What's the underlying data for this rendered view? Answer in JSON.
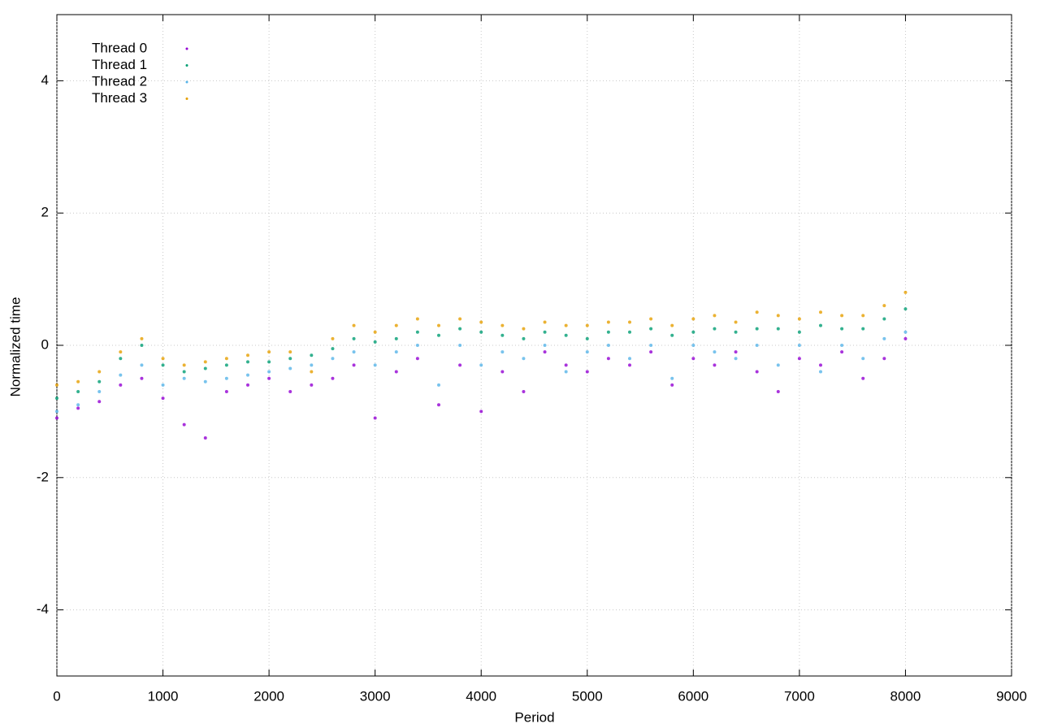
{
  "chart_data": {
    "type": "scatter",
    "x_label": "Period",
    "y_label": "Normalized time",
    "x": [
      0,
      200,
      400,
      600,
      800,
      1000,
      1200,
      1400,
      1600,
      1800,
      2000,
      2200,
      2400,
      2600,
      2800,
      3000,
      3200,
      3400,
      3600,
      3800,
      4000,
      4200,
      4400,
      4600,
      4800,
      5000,
      5200,
      5400,
      5600,
      5800,
      6000,
      6200,
      6400,
      6600,
      6800,
      7000,
      7200,
      7400,
      7600,
      7800,
      8000
    ],
    "series": [
      {
        "name": "Thread 0",
        "color": "#9400d3",
        "values": [
          -1.1,
          -0.95,
          -0.85,
          -0.6,
          -0.5,
          -0.8,
          -1.2,
          -1.4,
          -0.7,
          -0.6,
          -0.5,
          -0.7,
          -0.6,
          -0.5,
          -0.3,
          -1.1,
          -0.4,
          -0.2,
          -0.9,
          -0.3,
          -1.0,
          -0.4,
          -0.7,
          -0.1,
          -0.3,
          -0.4,
          -0.2,
          -0.3,
          -0.1,
          -0.6,
          -0.2,
          -0.3,
          -0.1,
          -0.4,
          -0.7,
          -0.2,
          -0.3,
          -0.1,
          -0.5,
          -0.2,
          0.1
        ]
      },
      {
        "name": "Thread 1",
        "color": "#009e73",
        "values": [
          -0.8,
          -0.7,
          -0.55,
          -0.2,
          0.0,
          -0.3,
          -0.4,
          -0.35,
          -0.3,
          -0.25,
          -0.25,
          -0.2,
          -0.15,
          -0.05,
          0.1,
          0.05,
          0.1,
          0.2,
          0.15,
          0.25,
          0.2,
          0.15,
          0.1,
          0.2,
          0.15,
          0.1,
          0.2,
          0.2,
          0.25,
          0.15,
          0.2,
          0.25,
          0.2,
          0.25,
          0.25,
          0.2,
          0.3,
          0.25,
          0.25,
          0.4,
          0.55
        ]
      },
      {
        "name": "Thread 2",
        "color": "#56b4e9",
        "values": [
          -1.0,
          -0.9,
          -0.7,
          -0.45,
          -0.3,
          -0.6,
          -0.5,
          -0.55,
          -0.5,
          -0.45,
          -0.4,
          -0.35,
          -0.3,
          -0.2,
          -0.1,
          -0.3,
          -0.1,
          0.0,
          -0.6,
          0.0,
          -0.3,
          -0.1,
          -0.2,
          0.0,
          -0.4,
          -0.1,
          0.0,
          -0.2,
          0.0,
          -0.5,
          0.0,
          -0.1,
          -0.2,
          0.0,
          -0.3,
          0.0,
          -0.4,
          0.0,
          -0.2,
          0.1,
          0.2
        ]
      },
      {
        "name": "Thread 3",
        "color": "#e69f00",
        "values": [
          -0.6,
          -0.55,
          -0.4,
          -0.1,
          0.1,
          -0.2,
          -0.3,
          -0.25,
          -0.2,
          -0.15,
          -0.1,
          -0.1,
          -0.4,
          0.1,
          0.3,
          0.2,
          0.3,
          0.4,
          0.3,
          0.4,
          0.35,
          0.3,
          0.25,
          0.35,
          0.3,
          0.3,
          0.35,
          0.35,
          0.4,
          0.3,
          0.4,
          0.45,
          0.35,
          0.5,
          0.45,
          0.4,
          0.5,
          0.45,
          0.45,
          0.6,
          0.8
        ]
      }
    ],
    "xlim": [
      0,
      9000
    ],
    "xticks": [
      0,
      1000,
      2000,
      3000,
      4000,
      5000,
      6000,
      7000,
      8000,
      9000
    ],
    "ylim": [
      -5,
      5
    ],
    "yticks": [
      -4,
      -2,
      0,
      2,
      4
    ],
    "grid": true,
    "legend": "top-left"
  }
}
